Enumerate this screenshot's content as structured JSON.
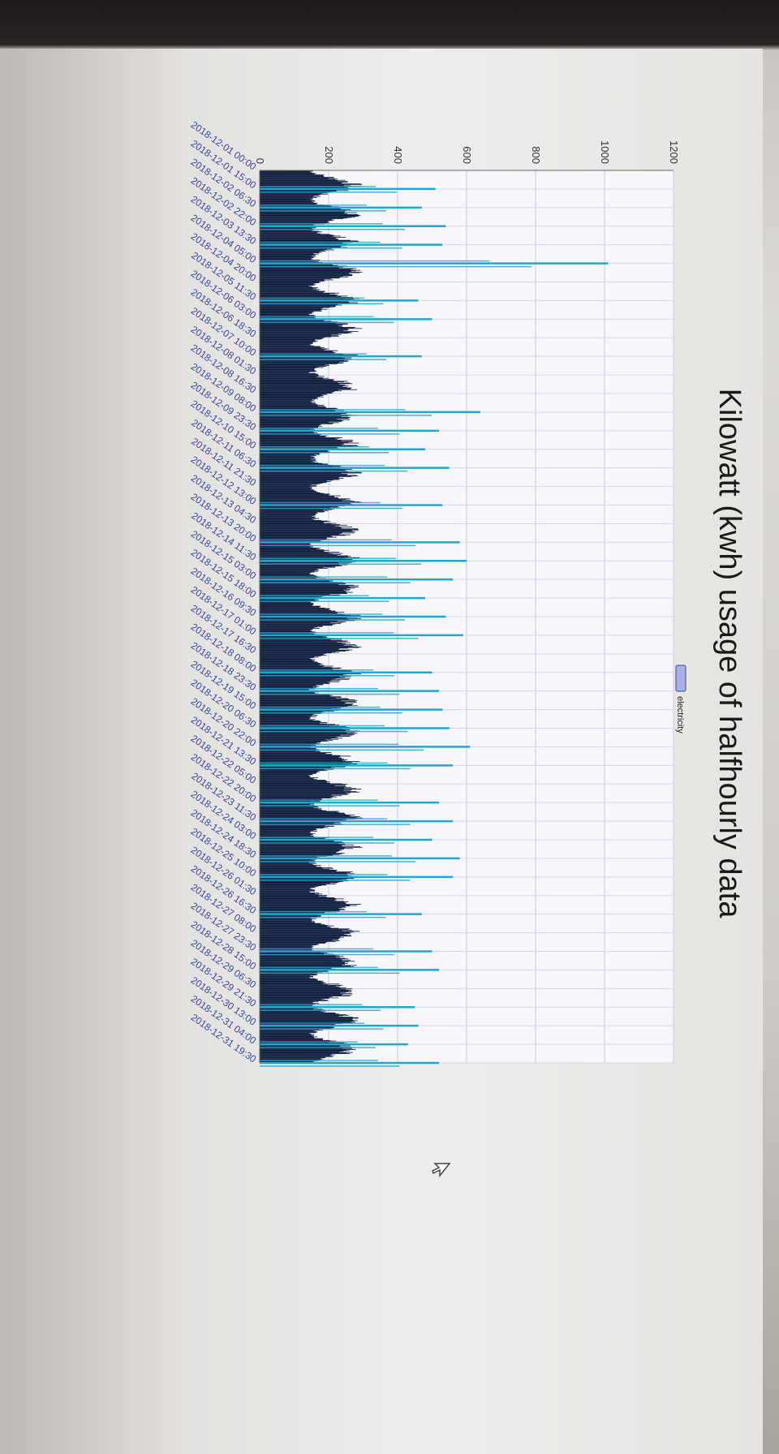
{
  "chart_data": {
    "type": "bar",
    "title": "Kilowatt (kwh) usage of halfhourly data",
    "legend": {
      "label": "electricity",
      "placement": "top"
    },
    "colors": {
      "bar": "#0a1a3a",
      "peak": "#21a7cf",
      "legend_swatch": "#a9b2e8"
    },
    "ylim": [
      0,
      1200
    ],
    "yticks": [
      "0",
      "200",
      "400",
      "600",
      "800",
      "1000",
      "1200"
    ],
    "x_tick_labels": [
      "2018-12-01 00:00",
      "2018-12-01 15:00",
      "2018-12-02 06:30",
      "2018-12-02 22:00",
      "2018-12-03 13:30",
      "2018-12-04 05:00",
      "2018-12-04 20:00",
      "2018-12-05 11:30",
      "2018-12-06 03:00",
      "2018-12-06 18:30",
      "2018-12-07 10:00",
      "2018-12-08 01:30",
      "2018-12-08 16:30",
      "2018-12-09 08:00",
      "2018-12-09 23:30",
      "2018-12-10 15:00",
      "2018-12-11 06:30",
      "2018-12-11 21:30",
      "2018-12-12 13:00",
      "2018-12-13 04:30",
      "2018-12-13 20:00",
      "2018-12-14 11:30",
      "2018-12-15 03:00",
      "2018-12-15 18:00",
      "2018-12-16 09:30",
      "2018-12-17 01:00",
      "2018-12-17 16:30",
      "2018-12-18 08:00",
      "2018-12-18 23:30",
      "2018-12-19 15:00",
      "2018-12-20 06:30",
      "2018-12-20 22:00",
      "2018-12-21 13:30",
      "2018-12-22 05:00",
      "2018-12-22 20:00",
      "2018-12-23 11:30",
      "2018-12-24 03:00",
      "2018-12-24 18:30",
      "2018-12-25 10:00",
      "2018-12-26 01:30",
      "2018-12-26 16:30",
      "2018-12-27 08:00",
      "2018-12-27 23:30",
      "2018-12-28 15:00",
      "2018-12-29 06:30",
      "2018-12-29 21:30",
      "2018-12-30 13:00",
      "2018-12-31 04:00",
      "2018-12-31 19:30"
    ],
    "peaks": [
      {
        "x": "2018-12-01 15:00",
        "y": 510
      },
      {
        "x": "2018-12-02 06:30",
        "y": 470
      },
      {
        "x": "2018-12-02 22:00",
        "y": 540
      },
      {
        "x": "2018-12-03 13:30",
        "y": 530
      },
      {
        "x": "2018-12-04 05:00",
        "y": 1010
      },
      {
        "x": "2018-12-05 11:30",
        "y": 460
      },
      {
        "x": "2018-12-06 03:00",
        "y": 500
      },
      {
        "x": "2018-12-07 10:00",
        "y": 470
      },
      {
        "x": "2018-12-09 08:00",
        "y": 640
      },
      {
        "x": "2018-12-09 23:30",
        "y": 520
      },
      {
        "x": "2018-12-10 15:00",
        "y": 480
      },
      {
        "x": "2018-12-11 06:30",
        "y": 550
      },
      {
        "x": "2018-12-12 13:00",
        "y": 530
      },
      {
        "x": "2018-12-13 20:00",
        "y": 580
      },
      {
        "x": "2018-12-14 11:30",
        "y": 600
      },
      {
        "x": "2018-12-15 03:00",
        "y": 560
      },
      {
        "x": "2018-12-15 18:00",
        "y": 480
      },
      {
        "x": "2018-12-16 09:30",
        "y": 540
      },
      {
        "x": "2018-12-17 01:00",
        "y": 590
      },
      {
        "x": "2018-12-18 08:00",
        "y": 500
      },
      {
        "x": "2018-12-18 23:30",
        "y": 520
      },
      {
        "x": "2018-12-19 15:00",
        "y": 530
      },
      {
        "x": "2018-12-20 06:30",
        "y": 550
      },
      {
        "x": "2018-12-20 22:00",
        "y": 610
      },
      {
        "x": "2018-12-21 13:30",
        "y": 560
      },
      {
        "x": "2018-12-22 20:00",
        "y": 520
      },
      {
        "x": "2018-12-23 11:30",
        "y": 560
      },
      {
        "x": "2018-12-24 03:00",
        "y": 500
      },
      {
        "x": "2018-12-24 18:30",
        "y": 580
      },
      {
        "x": "2018-12-25 10:00",
        "y": 560
      },
      {
        "x": "2018-12-26 16:30",
        "y": 470
      },
      {
        "x": "2018-12-27 23:30",
        "y": 500
      },
      {
        "x": "2018-12-28 15:00",
        "y": 520
      },
      {
        "x": "2018-12-29 21:30",
        "y": 450
      },
      {
        "x": "2018-12-30 13:00",
        "y": 460
      },
      {
        "x": "2018-12-31 04:00",
        "y": 430
      },
      {
        "x": "2018-12-31 19:30",
        "y": 520
      }
    ],
    "typical_range": [
      150,
      300
    ]
  }
}
